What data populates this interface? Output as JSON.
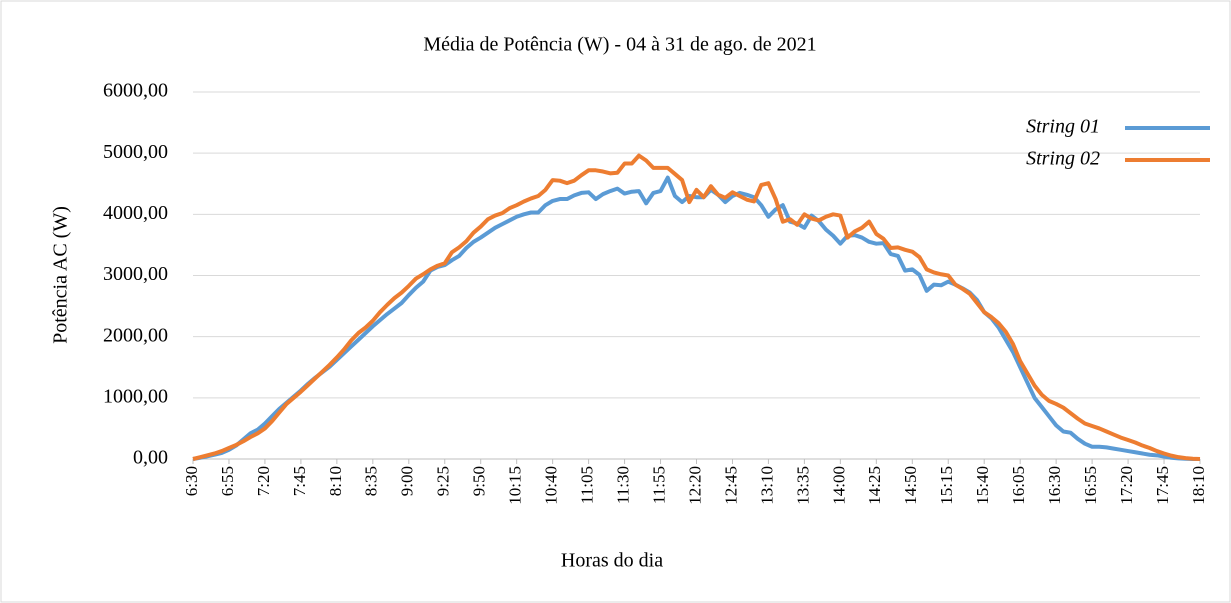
{
  "chart_data": {
    "type": "line",
    "title": "Média de Potência (W) - 04 à 31 de ago. de 2021",
    "xlabel": "Horas do dia",
    "ylabel": "Potência AC (W)",
    "categories": [
      "6:30",
      null,
      null,
      null,
      null,
      "6:55",
      null,
      null,
      null,
      null,
      "7:20",
      null,
      null,
      null,
      null,
      "7:45",
      null,
      null,
      null,
      null,
      "8:10",
      null,
      null,
      null,
      null,
      "8:35",
      null,
      null,
      null,
      null,
      "9:00",
      null,
      null,
      null,
      null,
      "9:25",
      null,
      null,
      null,
      null,
      "9:50",
      null,
      null,
      null,
      null,
      "10:15",
      null,
      null,
      null,
      null,
      "10:40",
      null,
      null,
      null,
      null,
      "11:05",
      null,
      null,
      null,
      null,
      "11:30",
      null,
      null,
      null,
      null,
      "11:55",
      null,
      null,
      null,
      null,
      "12:20",
      null,
      null,
      null,
      null,
      "12:45",
      null,
      null,
      null,
      null,
      "13:10",
      null,
      null,
      null,
      null,
      "13:35",
      null,
      null,
      null,
      null,
      "14:00",
      null,
      null,
      null,
      null,
      "14:25",
      null,
      null,
      null,
      null,
      "14:50",
      null,
      null,
      null,
      null,
      "15:15",
      null,
      null,
      null,
      null,
      "15:40",
      null,
      null,
      null,
      null,
      "16:05",
      null,
      null,
      null,
      null,
      "16:30",
      null,
      null,
      null,
      null,
      "16:55",
      null,
      null,
      null,
      null,
      "17:20",
      null,
      null,
      null,
      null,
      "17:45",
      null,
      null,
      null,
      null,
      "18:10"
    ],
    "series": [
      {
        "name": "String 01",
        "color": "#5b9bd5",
        "values": [
          0,
          20,
          45,
          70,
          100,
          150,
          220,
          320,
          420,
          480,
          580,
          700,
          820,
          920,
          1020,
          1120,
          1230,
          1330,
          1420,
          1510,
          1620,
          1730,
          1840,
          1950,
          2060,
          2170,
          2270,
          2370,
          2460,
          2550,
          2680,
          2800,
          2900,
          3080,
          3140,
          3170,
          3250,
          3320,
          3450,
          3550,
          3620,
          3700,
          3780,
          3840,
          3900,
          3960,
          4000,
          4030,
          4030,
          4150,
          4220,
          4250,
          4250,
          4310,
          4350,
          4360,
          4250,
          4330,
          4380,
          4420,
          4340,
          4370,
          4380,
          4180,
          4350,
          4380,
          4600,
          4300,
          4200,
          4300,
          4280,
          4280,
          4400,
          4320,
          4200,
          4300,
          4350,
          4320,
          4280,
          4150,
          3960,
          4080,
          4150,
          3880,
          3850,
          3780,
          3980,
          3890,
          3750,
          3650,
          3520,
          3650,
          3660,
          3620,
          3550,
          3520,
          3530,
          3350,
          3320,
          3080,
          3100,
          3010,
          2750,
          2850,
          2840,
          2900,
          2850,
          2790,
          2720,
          2600,
          2400,
          2300,
          2150,
          1950,
          1750,
          1500,
          1250,
          1000,
          850,
          700,
          550,
          450,
          430,
          330,
          250,
          200,
          200,
          190,
          170,
          150,
          130,
          110,
          90,
          70,
          60,
          40,
          20,
          10,
          5,
          0,
          0
        ]
      },
      {
        "name": "String 02",
        "color": "#ed7d31",
        "values": [
          0,
          30,
          60,
          90,
          130,
          180,
          230,
          290,
          360,
          420,
          500,
          620,
          760,
          900,
          1000,
          1100,
          1210,
          1320,
          1430,
          1540,
          1660,
          1790,
          1940,
          2060,
          2150,
          2260,
          2400,
          2520,
          2630,
          2720,
          2830,
          2950,
          3020,
          3100,
          3160,
          3200,
          3380,
          3460,
          3560,
          3700,
          3800,
          3920,
          3980,
          4020,
          4100,
          4150,
          4210,
          4260,
          4300,
          4400,
          4560,
          4550,
          4510,
          4550,
          4640,
          4720,
          4720,
          4700,
          4670,
          4680,
          4830,
          4830,
          4960,
          4880,
          4760,
          4760,
          4760,
          4660,
          4560,
          4200,
          4400,
          4280,
          4460,
          4320,
          4270,
          4360,
          4300,
          4240,
          4210,
          4480,
          4510,
          4250,
          3880,
          3920,
          3830,
          4000,
          3930,
          3900,
          3960,
          4000,
          3980,
          3620,
          3720,
          3780,
          3880,
          3680,
          3600,
          3450,
          3460,
          3420,
          3390,
          3300,
          3100,
          3050,
          3020,
          3000,
          2850,
          2780,
          2700,
          2550,
          2400,
          2320,
          2220,
          2080,
          1880,
          1600,
          1400,
          1200,
          1050,
          950,
          900,
          840,
          750,
          660,
          580,
          540,
          500,
          450,
          400,
          350,
          310,
          270,
          220,
          180,
          130,
          90,
          55,
          30,
          15,
          5,
          0
        ]
      }
    ],
    "ylim": [
      0,
      6000
    ],
    "yticks": [
      {
        "value": 0,
        "label": "0,00"
      },
      {
        "value": 1000,
        "label": "1000,00"
      },
      {
        "value": 2000,
        "label": "2000,00"
      },
      {
        "value": 3000,
        "label": "3000,00"
      },
      {
        "value": 4000,
        "label": "4000,00"
      },
      {
        "value": 5000,
        "label": "5000,00"
      },
      {
        "value": 6000,
        "label": "6000,00"
      }
    ],
    "grid": true,
    "legend": "upper right"
  }
}
